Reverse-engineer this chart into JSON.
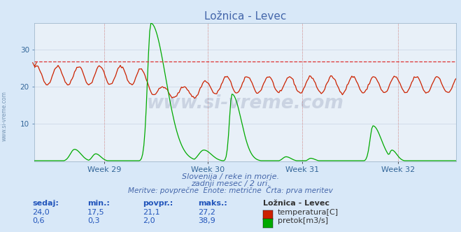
{
  "title": "Ložnica - Levec",
  "bg_color": "#d8e8f8",
  "plot_bg_color": "#e8f0f8",
  "title_color": "#4466aa",
  "grid_color": "#c8d4e4",
  "xlabel_weeks": [
    "Week 29",
    "Week 30",
    "Week 31",
    "Week 32"
  ],
  "xlabel_week_positions": [
    0.165,
    0.41,
    0.635,
    0.862
  ],
  "ylabel_temp": "temperatura[C]",
  "ylabel_flow": "pretok[m3/s]",
  "temp_color": "#cc2200",
  "flow_color": "#00aa00",
  "dashed_line_color": "#dd3333",
  "dashed_line_value": 26.7,
  "ymin": 0,
  "ymax": 37,
  "yticks": [
    10,
    20,
    30
  ],
  "n_points": 360,
  "watermark": "www.si-vreme.com",
  "subtitle1": "Slovenija / reke in morje.",
  "subtitle2": "zadnji mesec / 2 uri.",
  "subtitle3": "Meritve: povprečne  Enote: metrične  Črta: prva meritev",
  "table_headers": [
    "sedaj:",
    "min.:",
    "povpr.:",
    "maks.:",
    "Ložnica - Levec"
  ],
  "table_row1": [
    "24,0",
    "17,5",
    "21,1",
    "27,2"
  ],
  "table_row2": [
    "0,6",
    "0,3",
    "2,0",
    "38,9"
  ],
  "left_label": "www.si-vreme.com",
  "vline_positions": [
    0.165,
    0.41,
    0.635,
    0.862
  ],
  "vline_color": "#ddaaaa"
}
